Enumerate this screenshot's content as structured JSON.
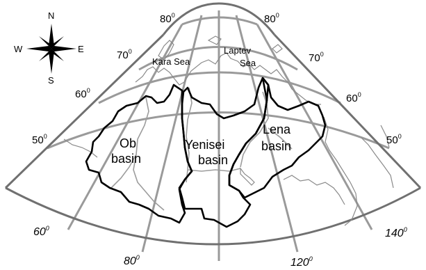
{
  "compass": {
    "n": "N",
    "s": "S",
    "e": "E",
    "w": "W"
  },
  "latitude_labels": {
    "left": [
      {
        "value": "70",
        "deg": "0"
      },
      {
        "value": "60",
        "deg": "0"
      },
      {
        "value": "50",
        "deg": "0"
      }
    ],
    "right": [
      {
        "value": "70",
        "deg": "0"
      },
      {
        "value": "60",
        "deg": "0"
      },
      {
        "value": "50",
        "deg": "0"
      }
    ],
    "top": [
      {
        "value": "80",
        "deg": "0"
      },
      {
        "value": "80",
        "deg": "0"
      }
    ]
  },
  "longitude_labels": [
    {
      "value": "60",
      "deg": "0"
    },
    {
      "value": "80",
      "deg": "0"
    },
    {
      "value": "120",
      "deg": "0"
    },
    {
      "value": "140",
      "deg": "0"
    }
  ],
  "seas": {
    "kara": "Kara Sea",
    "laptev_line1": "Laptev",
    "laptev_line2": "Sea"
  },
  "basins": {
    "ob": {
      "line1": "Ob",
      "line2": "basin"
    },
    "yenisei": {
      "line1": "Yenisei",
      "line2": "basin"
    },
    "lena": {
      "line1": "Lena",
      "line2": "basin"
    }
  }
}
